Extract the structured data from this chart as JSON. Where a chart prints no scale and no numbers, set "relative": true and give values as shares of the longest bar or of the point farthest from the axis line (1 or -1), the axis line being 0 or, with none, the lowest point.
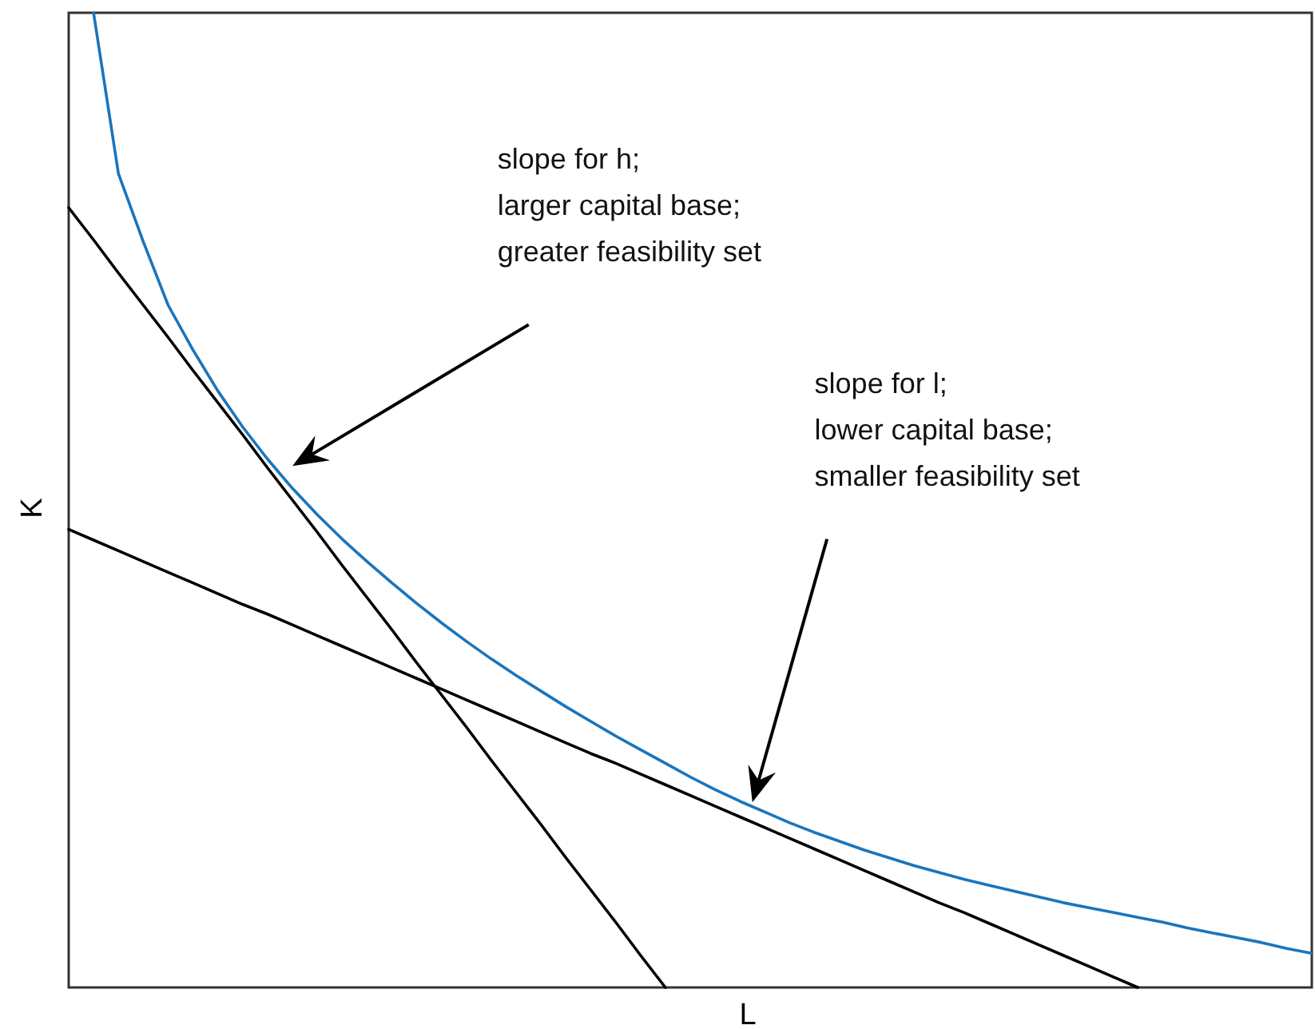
{
  "chart_data": {
    "type": "line",
    "relative": true,
    "xlabel": "L",
    "ylabel": "K",
    "legend": false,
    "marker": "none",
    "line_style": "solid",
    "categories": [
      null,
      null,
      null,
      null,
      null,
      null,
      null,
      null,
      null,
      null,
      null,
      null,
      null,
      null,
      null,
      null,
      null,
      null,
      null,
      null,
      null,
      null,
      null,
      null,
      null,
      null,
      null,
      null,
      null,
      null,
      null,
      null,
      null,
      null,
      null,
      null,
      null,
      null,
      null,
      null,
      null,
      null,
      null,
      null,
      null,
      null,
      null,
      null,
      null,
      null,
      null
    ],
    "series": [
      {
        "color": "#1a75bc",
        "values": [
          null,
          1.0,
          0.835,
          0.765,
          0.7,
          0.654,
          0.612,
          0.575,
          0.542,
          0.512,
          0.485,
          0.46,
          0.437,
          0.415,
          0.394,
          0.374,
          0.355,
          0.337,
          0.32,
          0.304,
          0.288,
          0.273,
          0.258,
          0.244,
          0.23,
          0.216,
          0.203,
          0.191,
          0.18,
          0.169,
          0.159,
          0.15,
          0.141,
          0.133,
          0.125,
          0.118,
          0.111,
          0.105,
          0.099,
          0.093,
          0.087,
          0.082,
          0.077,
          0.072,
          0.067,
          0.061,
          0.056,
          0.051,
          0.046,
          0.04,
          0.035
        ]
      },
      {
        "color": "#000000",
        "values": [
          0.8,
          0.767,
          0.733,
          0.7,
          0.667,
          0.633,
          0.6,
          0.567,
          0.533,
          0.5,
          0.467,
          0.433,
          0.4,
          0.367,
          0.333,
          0.3,
          0.267,
          0.233,
          0.2,
          0.167,
          0.133,
          0.1,
          0.067,
          0.033,
          0,
          null,
          null,
          null,
          null,
          null,
          null,
          null,
          null,
          null,
          null,
          null,
          null,
          null,
          null,
          null,
          null,
          null,
          null,
          null,
          null,
          null,
          null,
          null,
          null,
          null,
          null
        ]
      },
      {
        "color": "#000000",
        "values": [
          0.47,
          0.459,
          0.448,
          0.437,
          0.426,
          0.415,
          0.404,
          0.393,
          0.383,
          0.372,
          0.361,
          0.35,
          0.339,
          0.328,
          0.317,
          0.306,
          0.295,
          0.284,
          0.273,
          0.262,
          0.251,
          0.24,
          0.23,
          0.219,
          0.208,
          0.197,
          0.186,
          0.175,
          0.164,
          0.153,
          0.142,
          0.131,
          0.12,
          0.109,
          0.098,
          0.087,
          0.077,
          0.066,
          0.055,
          0.044,
          0.033,
          0.022,
          0.011,
          0,
          null,
          null,
          null,
          null,
          null,
          null,
          null
        ]
      }
    ],
    "annotations": [
      "slope for h;\nlarger capital base;\ngreater feasibility set",
      "slope for l;\nlower capital base;\nsmaller feasibility set"
    ]
  }
}
